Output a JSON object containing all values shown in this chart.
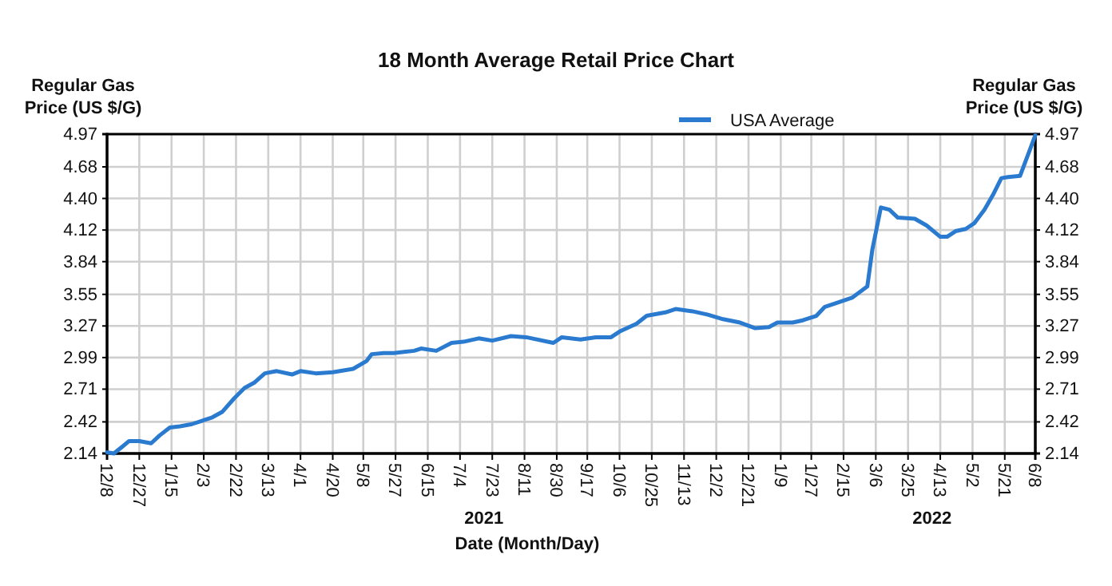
{
  "chart_data": {
    "type": "line",
    "title": "18 Month Average Retail Price Chart",
    "xlabel": "Date (Month/Day)",
    "ylabel": "Regular Gas Price (US $/G)",
    "y2label": "Regular Gas Price (US $/G)",
    "annotations": [
      "2021",
      "2022"
    ],
    "x": [
      "2020-12-08",
      "2020-12-12",
      "2020-12-17",
      "2020-12-21",
      "2020-12-27",
      "2021-01-03",
      "2021-01-08",
      "2021-01-14",
      "2021-01-20",
      "2021-01-27",
      "2021-02-02",
      "2021-02-08",
      "2021-02-14",
      "2021-02-21",
      "2021-02-27",
      "2021-03-05",
      "2021-03-11",
      "2021-03-18",
      "2021-03-27",
      "2021-04-01",
      "2021-04-10",
      "2021-04-20",
      "2021-05-02",
      "2021-05-10",
      "2021-05-13",
      "2021-05-20",
      "2021-05-26",
      "2021-06-07",
      "2021-06-11",
      "2021-06-20",
      "2021-06-29",
      "2021-07-06",
      "2021-07-15",
      "2021-07-23",
      "2021-08-03",
      "2021-08-12",
      "2021-08-28",
      "2021-09-02",
      "2021-09-13",
      "2021-09-22",
      "2021-10-01",
      "2021-10-06",
      "2021-10-16",
      "2021-10-22",
      "2021-11-02",
      "2021-11-08",
      "2021-11-18",
      "2021-11-27",
      "2021-12-06",
      "2021-12-16",
      "2021-12-25",
      "2022-01-02",
      "2022-01-07",
      "2022-01-16",
      "2022-01-22",
      "2022-01-30",
      "2022-02-04",
      "2022-02-10",
      "2022-02-20",
      "2022-03-01",
      "2022-03-04",
      "2022-03-09",
      "2022-03-14",
      "2022-03-19",
      "2022-03-29",
      "2022-04-05",
      "2022-04-13",
      "2022-04-17",
      "2022-04-22",
      "2022-04-28",
      "2022-05-03",
      "2022-05-09",
      "2022-05-14",
      "2022-05-19",
      "2022-05-23",
      "2022-05-30",
      "2022-06-04",
      "2022-06-08"
    ],
    "series": [
      {
        "name": "USA Average",
        "color": "#2a7bd0",
        "values": [
          2.15,
          2.14,
          2.2,
          2.25,
          2.25,
          2.23,
          2.3,
          2.37,
          2.38,
          2.4,
          2.43,
          2.46,
          2.51,
          2.63,
          2.72,
          2.77,
          2.85,
          2.87,
          2.84,
          2.87,
          2.85,
          2.86,
          2.89,
          2.96,
          3.02,
          3.03,
          3.03,
          3.05,
          3.07,
          3.05,
          3.12,
          3.13,
          3.16,
          3.14,
          3.18,
          3.17,
          3.12,
          3.17,
          3.15,
          3.17,
          3.17,
          3.22,
          3.29,
          3.36,
          3.39,
          3.42,
          3.4,
          3.37,
          3.33,
          3.3,
          3.25,
          3.26,
          3.3,
          3.3,
          3.32,
          3.36,
          3.44,
          3.47,
          3.52,
          3.62,
          3.95,
          4.32,
          4.3,
          4.23,
          4.22,
          4.16,
          4.06,
          4.06,
          4.11,
          4.13,
          4.18,
          4.3,
          4.43,
          4.58,
          4.59,
          4.6,
          4.8,
          4.96
        ]
      }
    ],
    "xlim": [
      "2020-12-08",
      "2022-06-08"
    ],
    "xticks": [
      {
        "value": "2020-12-08",
        "label": "12/8"
      },
      {
        "value": "2020-12-27",
        "label": "12/27"
      },
      {
        "value": "2021-01-15",
        "label": "1/15"
      },
      {
        "value": "2021-02-03",
        "label": "2/3"
      },
      {
        "value": "2021-02-22",
        "label": "2/22"
      },
      {
        "value": "2021-03-13",
        "label": "3/13"
      },
      {
        "value": "2021-04-01",
        "label": "4/1"
      },
      {
        "value": "2021-04-20",
        "label": "4/20"
      },
      {
        "value": "2021-05-08",
        "label": "5/8"
      },
      {
        "value": "2021-05-27",
        "label": "5/27"
      },
      {
        "value": "2021-06-15",
        "label": "6/15"
      },
      {
        "value": "2021-07-04",
        "label": "7/4"
      },
      {
        "value": "2021-07-23",
        "label": "7/23"
      },
      {
        "value": "2021-08-11",
        "label": "8/11"
      },
      {
        "value": "2021-08-30",
        "label": "8/30"
      },
      {
        "value": "2021-09-17",
        "label": "9/17"
      },
      {
        "value": "2021-10-06",
        "label": "10/6"
      },
      {
        "value": "2021-10-25",
        "label": "10/25"
      },
      {
        "value": "2021-11-13",
        "label": "11/13"
      },
      {
        "value": "2021-12-02",
        "label": "12/2"
      },
      {
        "value": "2021-12-21",
        "label": "12/21"
      },
      {
        "value": "2022-01-09",
        "label": "1/9"
      },
      {
        "value": "2022-01-27",
        "label": "1/27"
      },
      {
        "value": "2022-02-15",
        "label": "2/15"
      },
      {
        "value": "2022-03-06",
        "label": "3/6"
      },
      {
        "value": "2022-03-25",
        "label": "3/25"
      },
      {
        "value": "2022-04-13",
        "label": "4/13"
      },
      {
        "value": "2022-05-02",
        "label": "5/2"
      },
      {
        "value": "2022-05-21",
        "label": "5/21"
      },
      {
        "value": "2022-06-08",
        "label": "6/8"
      }
    ],
    "ylim": [
      2.14,
      4.97
    ],
    "yticks": [
      2.14,
      2.42,
      2.71,
      2.99,
      3.27,
      3.55,
      3.84,
      4.12,
      {
        "value": 4.4,
        "label": "4.40"
      },
      4.68,
      4.97
    ],
    "y2lim": [
      2.14,
      4.97
    ],
    "y2ticks": [
      2.14,
      2.42,
      2.71,
      2.99,
      3.27,
      3.55,
      3.84,
      4.12,
      {
        "value": 4.4,
        "label": "4.40"
      },
      4.68,
      4.97
    ],
    "grid": true,
    "legend": "top",
    "line_style": "solid",
    "marker": "none"
  }
}
